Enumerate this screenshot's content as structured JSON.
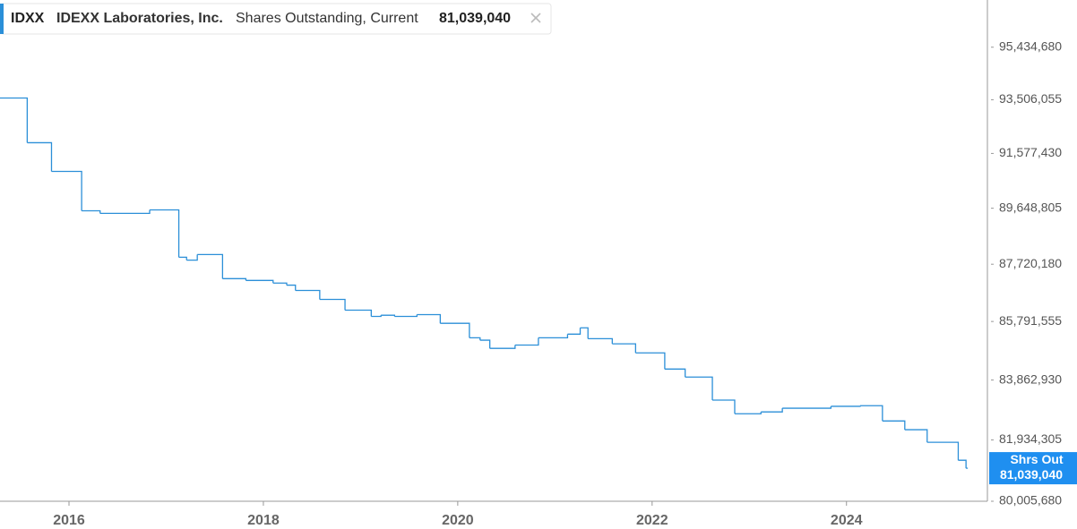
{
  "chart_data": {
    "type": "step",
    "ticker": "IDXX",
    "company": "IDEXX Laboratories, Inc.",
    "metric": "Shares Outstanding, Current",
    "current_value_label": "81,039,040",
    "x": [
      2015.29,
      2015.57,
      2015.82,
      2016.13,
      2016.32,
      2016.83,
      2017.13,
      2017.21,
      2017.32,
      2017.58,
      2017.82,
      2018.1,
      2018.24,
      2018.33,
      2018.58,
      2018.84,
      2019.11,
      2019.21,
      2019.35,
      2019.58,
      2019.82,
      2020.12,
      2020.23,
      2020.33,
      2020.59,
      2020.83,
      2021.13,
      2021.26,
      2021.34,
      2021.59,
      2021.83,
      2022.13,
      2022.34,
      2022.62,
      2022.85,
      2023.12,
      2023.34,
      2023.84,
      2024.14,
      2024.37,
      2024.6,
      2024.83,
      2025.15,
      2025.23
    ],
    "series": [
      {
        "name": "Shrs Out",
        "color": "#2b8fd8",
        "end_label": "81,039,040",
        "values": [
          93570000,
          91960000,
          90940000,
          89560000,
          89470000,
          89590000,
          87960000,
          87860000,
          88050000,
          87230000,
          87170000,
          87080000,
          87010000,
          86830000,
          86530000,
          86170000,
          85960000,
          86000000,
          85960000,
          86020000,
          85730000,
          85250000,
          85170000,
          84900000,
          85010000,
          85250000,
          85370000,
          85580000,
          85220000,
          85050000,
          84750000,
          84220000,
          83960000,
          83210000,
          82770000,
          82830000,
          82950000,
          83010000,
          83030000,
          82540000,
          82260000,
          81860000,
          81290000,
          81039040
        ]
      }
    ],
    "xlim": [
      2015.29,
      2025.45
    ],
    "xticks": [
      2016,
      2018,
      2020,
      2022,
      2024
    ],
    "ylim": [
      80005680,
      97200000
    ],
    "log_scale": true,
    "yticks": [
      {
        "value": 80005680,
        "label": "80,005,680"
      },
      {
        "value": 81934305,
        "label": "81,934,305"
      },
      {
        "value": 83862930,
        "label": "83,862,930"
      },
      {
        "value": 85791555,
        "label": "85,791,555"
      },
      {
        "value": 87720180,
        "label": "87,720,180"
      },
      {
        "value": 89648805,
        "label": "89,648,805"
      },
      {
        "value": 91577430,
        "label": "91,577,430"
      },
      {
        "value": 93506055,
        "label": "93,506,055"
      },
      {
        "value": 95434680,
        "label": "95,434,680"
      }
    ],
    "grid": false
  }
}
